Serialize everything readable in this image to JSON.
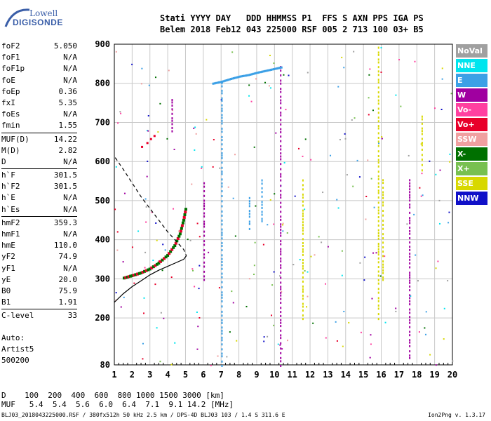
{
  "logo": {
    "line1": "Lowell",
    "line2": "DIGISONDE"
  },
  "header": {
    "labels": "Stati YYYY DAY   DDD HHMMSS P1  FFS S AXN PPS IGA PS",
    "values": "Belem 2018 Feb12 043 225000 RSF 005 2 713 100 03+ B5"
  },
  "params": [
    {
      "name": "foF2",
      "value": "5.050"
    },
    {
      "name": "foF1",
      "value": "N/A"
    },
    {
      "name": "foF1p",
      "value": "N/A"
    },
    {
      "name": "foE",
      "value": "N/A"
    },
    {
      "name": "foEp",
      "value": "0.36"
    },
    {
      "name": "fxI",
      "value": "5.35"
    },
    {
      "name": "foEs",
      "value": "N/A"
    },
    {
      "name": "fmin",
      "value": "1.55"
    },
    {
      "sep": true
    },
    {
      "name": "MUF(D)",
      "value": "14.22"
    },
    {
      "name": "M(D)",
      "value": "2.82"
    },
    {
      "name": "D",
      "value": "N/A"
    },
    {
      "sep": true
    },
    {
      "name": "h`F",
      "value": "301.5"
    },
    {
      "name": "h`F2",
      "value": "301.5"
    },
    {
      "name": "h`E",
      "value": "N/A"
    },
    {
      "name": "h`Es",
      "value": "N/A"
    },
    {
      "sep": true
    },
    {
      "name": "hmF2",
      "value": "359.3"
    },
    {
      "name": "hmF1",
      "value": "N/A"
    },
    {
      "name": "hmE",
      "value": "110.0"
    },
    {
      "name": "yF2",
      "value": "74.9"
    },
    {
      "name": "yF1",
      "value": "N/A"
    },
    {
      "name": "yE",
      "value": "20.0"
    },
    {
      "name": "B0",
      "value": "75.9"
    },
    {
      "name": "B1",
      "value": "1.91"
    },
    {
      "sep": true
    },
    {
      "name": "C-level",
      "value": "33"
    }
  ],
  "extra": {
    "auto": "Auto:",
    "artist": "Artist5",
    "code": "500200"
  },
  "legend": [
    {
      "label": "NoVal",
      "color": "#a0a0a0"
    },
    {
      "label": "NNE",
      "color": "#00e5ee"
    },
    {
      "label": "E",
      "color": "#3ca0e6"
    },
    {
      "label": "W",
      "color": "#a000a0"
    },
    {
      "label": "Vo-",
      "color": "#ff40a0"
    },
    {
      "label": "Vo+",
      "color": "#e8002a"
    },
    {
      "label": "SSW",
      "color": "#f0a0a0"
    },
    {
      "label": "X-",
      "color": "#007000"
    },
    {
      "label": "X+",
      "color": "#78c050"
    },
    {
      "label": "SSE",
      "color": "#d8d800"
    },
    {
      "label": "NNW",
      "color": "#1010c8"
    }
  ],
  "dtable": {
    "d_row": "D    100  200  400  600  800 1000 1500 3000 [km]",
    "muf_row": "MUF   5.4  5.4  5.6  6.0  6.4  7.1  9.1 14.2 [MHz]"
  },
  "footer": {
    "left": "BLJ03_2018043225000.RSF / 380fx512h 50 kHz 2.5 km / DPS-4D BLJ03 103 / 1.4 S 311.6 E",
    "right": "Ion2Png v. 1.3.17"
  },
  "chart_data": {
    "type": "scatter",
    "xlim": [
      1,
      20
    ],
    "ylim": [
      80,
      900
    ],
    "x_ticks": [
      1,
      2,
      3,
      4,
      5,
      6,
      7,
      8,
      9,
      10,
      11,
      12,
      13,
      14,
      15,
      16,
      17,
      18,
      19,
      20
    ],
    "y_ticks": [
      80,
      200,
      300,
      400,
      500,
      600,
      700,
      800,
      900
    ],
    "grid": true,
    "traces": [
      {
        "name": "virtual-height-trace",
        "points": [
          [
            1.55,
            302
          ],
          [
            2.0,
            308
          ],
          [
            2.5,
            315
          ],
          [
            3.0,
            325
          ],
          [
            3.5,
            340
          ],
          [
            4.0,
            360
          ],
          [
            4.4,
            385
          ],
          [
            4.7,
            415
          ],
          [
            4.9,
            450
          ],
          [
            5.05,
            485
          ]
        ]
      },
      {
        "name": "profile-solid",
        "points": [
          [
            1.0,
            240
          ],
          [
            1.5,
            262
          ],
          [
            2.0,
            280
          ],
          [
            2.5,
            295
          ],
          [
            3.0,
            310
          ],
          [
            3.5,
            322
          ],
          [
            4.0,
            332
          ],
          [
            4.5,
            342
          ],
          [
            4.9,
            350
          ],
          [
            5.05,
            359
          ]
        ]
      },
      {
        "name": "profile-dashed",
        "points": [
          [
            1.05,
            610
          ],
          [
            1.5,
            580
          ],
          [
            2.0,
            545
          ],
          [
            2.5,
            510
          ],
          [
            3.0,
            480
          ],
          [
            3.5,
            450
          ],
          [
            4.0,
            420
          ],
          [
            4.5,
            395
          ],
          [
            4.9,
            375
          ],
          [
            5.05,
            359
          ]
        ]
      }
    ],
    "columns": [
      {
        "x": 7.05,
        "y0": 80,
        "y1": 805,
        "color": "#3ca0e6"
      },
      {
        "x": 6.05,
        "y0": 300,
        "y1": 560,
        "color": "#a000a0"
      },
      {
        "x": 10.35,
        "y0": 80,
        "y1": 850,
        "color": "#a000a0"
      },
      {
        "x": 11.6,
        "y0": 200,
        "y1": 560,
        "color": "#d8d800"
      },
      {
        "x": 15.85,
        "y0": 200,
        "y1": 900,
        "color": "#d8d800"
      },
      {
        "x": 16.1,
        "y0": 300,
        "y1": 560,
        "color": "#d8d800"
      },
      {
        "x": 17.6,
        "y0": 100,
        "y1": 560,
        "color": "#a000a0"
      },
      {
        "x": 18.3,
        "y0": 580,
        "y1": 720,
        "color": "#d8d800"
      },
      {
        "x": 8.6,
        "y0": 430,
        "y1": 520,
        "color": "#3ca0e6"
      },
      {
        "x": 9.3,
        "y0": 450,
        "y1": 560,
        "color": "#3ca0e6"
      },
      {
        "x": 4.25,
        "y0": 680,
        "y1": 770,
        "color": "#a000a0"
      }
    ],
    "e_trace": [
      [
        6.5,
        800
      ],
      [
        7.0,
        805
      ],
      [
        7.5,
        812
      ],
      [
        8.0,
        818
      ],
      [
        8.5,
        822
      ],
      [
        9.0,
        828
      ],
      [
        9.5,
        833
      ],
      [
        10.0,
        838
      ],
      [
        10.4,
        842
      ]
    ],
    "top_trace": [
      [
        2.5,
        640
      ],
      [
        2.8,
        650
      ],
      [
        3.0,
        660
      ],
      [
        3.2,
        668
      ]
    ]
  }
}
